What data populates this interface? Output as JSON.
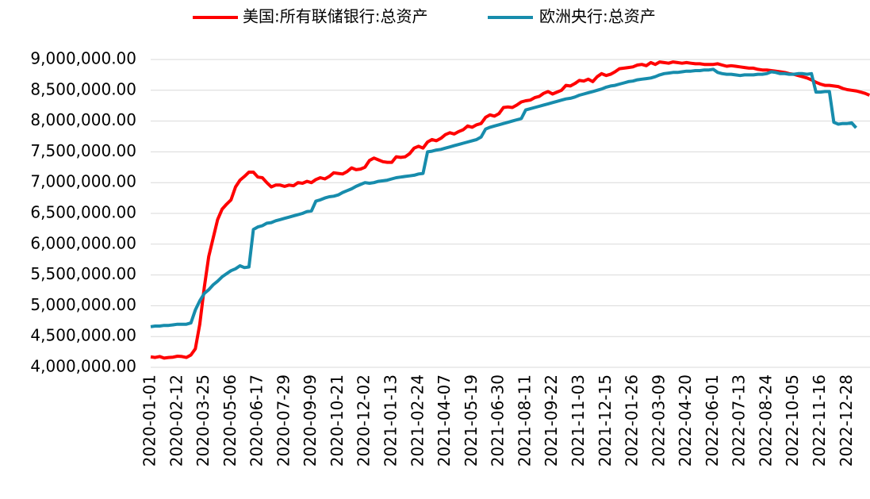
{
  "chart_data": {
    "type": "line",
    "categories": [
      "2020-01-01",
      null,
      null,
      null,
      null,
      null,
      "2020-02-12",
      null,
      null,
      null,
      null,
      null,
      "2020-03-25",
      null,
      null,
      null,
      null,
      null,
      "2020-05-06",
      null,
      null,
      null,
      null,
      null,
      "2020-06-17",
      null,
      null,
      null,
      null,
      null,
      "2020-07-29",
      null,
      null,
      null,
      null,
      null,
      "2020-09-09",
      null,
      null,
      null,
      null,
      null,
      "2020-10-21",
      null,
      null,
      null,
      null,
      null,
      "2020-12-02",
      null,
      null,
      null,
      null,
      null,
      "2021-01-13",
      null,
      null,
      null,
      null,
      null,
      "2021-02-24",
      null,
      null,
      null,
      null,
      null,
      "2021-04-07",
      null,
      null,
      null,
      null,
      null,
      "2021-05-19",
      null,
      null,
      null,
      null,
      null,
      "2021-06-30",
      null,
      null,
      null,
      null,
      null,
      "2021-08-11",
      null,
      null,
      null,
      null,
      null,
      "2021-09-22",
      null,
      null,
      null,
      null,
      null,
      "2021-11-03",
      null,
      null,
      null,
      null,
      null,
      "2021-12-15",
      null,
      null,
      null,
      null,
      null,
      "2022-01-26",
      null,
      null,
      null,
      null,
      null,
      "2022-03-09",
      null,
      null,
      null,
      null,
      null,
      "2022-04-20",
      null,
      null,
      null,
      null,
      null,
      "2022-06-01",
      null,
      null,
      null,
      null,
      null,
      "2022-07-13",
      null,
      null,
      null,
      null,
      null,
      "2022-08-24",
      null,
      null,
      null,
      null,
      null,
      "2022-10-05",
      null,
      null,
      null,
      null,
      null,
      "2022-11-16",
      null,
      null,
      null,
      null,
      null,
      "2022-12-28",
      null,
      null,
      null,
      null,
      null
    ],
    "series": [
      {
        "name": "美国:所有联储银行:总资产",
        "color": "#ff0000",
        "values": [
          4170000,
          4160000,
          4175000,
          4150000,
          4160000,
          4165000,
          4180000,
          4175000,
          4160000,
          4200000,
          4300000,
          4700000,
          5300000,
          5800000,
          6100000,
          6400000,
          6570000,
          6650000,
          6720000,
          6930000,
          7040000,
          7100000,
          7170000,
          7170000,
          7090000,
          7080000,
          7000000,
          6930000,
          6960000,
          6960000,
          6940000,
          6960000,
          6950000,
          7000000,
          6990000,
          7020000,
          7000000,
          7050000,
          7080000,
          7060000,
          7100000,
          7160000,
          7150000,
          7140000,
          7180000,
          7240000,
          7210000,
          7220000,
          7250000,
          7360000,
          7400000,
          7370000,
          7340000,
          7330000,
          7330000,
          7420000,
          7410000,
          7420000,
          7470000,
          7560000,
          7590000,
          7560000,
          7660000,
          7700000,
          7680000,
          7720000,
          7780000,
          7810000,
          7790000,
          7830000,
          7860000,
          7920000,
          7900000,
          7940000,
          7960000,
          8060000,
          8100000,
          8080000,
          8120000,
          8220000,
          8230000,
          8220000,
          8260000,
          8310000,
          8330000,
          8340000,
          8380000,
          8400000,
          8450000,
          8480000,
          8440000,
          8470000,
          8500000,
          8580000,
          8570000,
          8610000,
          8660000,
          8650000,
          8680000,
          8640000,
          8720000,
          8770000,
          8740000,
          8760000,
          8800000,
          8850000,
          8860000,
          8870000,
          8880000,
          8910000,
          8920000,
          8900000,
          8950000,
          8920000,
          8960000,
          8950000,
          8940000,
          8960000,
          8950000,
          8940000,
          8950000,
          8940000,
          8930000,
          8930000,
          8920000,
          8920000,
          8920000,
          8930000,
          8910000,
          8890000,
          8900000,
          8890000,
          8880000,
          8870000,
          8860000,
          8860000,
          8840000,
          8830000,
          8830000,
          8820000,
          8810000,
          8800000,
          8790000,
          8770000,
          8760000,
          8740000,
          8720000,
          8700000,
          8670000,
          8630000,
          8600000,
          8580000,
          8580000,
          8570000,
          8560000,
          8530000,
          8510000,
          8500000,
          8490000,
          8470000,
          8450000,
          8420000
        ]
      },
      {
        "name": "欧洲央行:总资产",
        "color": "#178cac",
        "values": [
          4660000,
          4670000,
          4670000,
          4680000,
          4680000,
          4690000,
          4700000,
          4700000,
          4700000,
          4720000,
          4930000,
          5080000,
          5200000,
          5260000,
          5340000,
          5400000,
          5470000,
          5520000,
          5570000,
          5600000,
          5650000,
          5620000,
          5630000,
          6240000,
          6280000,
          6300000,
          6340000,
          6350000,
          6380000,
          6400000,
          6420000,
          6440000,
          6460000,
          6480000,
          6500000,
          6530000,
          6540000,
          6700000,
          6720000,
          6750000,
          6770000,
          6780000,
          6800000,
          6840000,
          6870000,
          6900000,
          6940000,
          6970000,
          7000000,
          6990000,
          7000000,
          7020000,
          7030000,
          7040000,
          7060000,
          7080000,
          7090000,
          7100000,
          7110000,
          7120000,
          7140000,
          7150000,
          7500000,
          7510000,
          7530000,
          7540000,
          7560000,
          7580000,
          7600000,
          7620000,
          7640000,
          7660000,
          7680000,
          7700000,
          7740000,
          7870000,
          7900000,
          7920000,
          7940000,
          7960000,
          7980000,
          8000000,
          8020000,
          8040000,
          8180000,
          8200000,
          8220000,
          8240000,
          8260000,
          8280000,
          8300000,
          8320000,
          8340000,
          8360000,
          8370000,
          8390000,
          8420000,
          8440000,
          8460000,
          8480000,
          8500000,
          8520000,
          8550000,
          8570000,
          8580000,
          8600000,
          8620000,
          8640000,
          8650000,
          8670000,
          8680000,
          8690000,
          8700000,
          8720000,
          8750000,
          8770000,
          8780000,
          8790000,
          8790000,
          8800000,
          8810000,
          8810000,
          8820000,
          8820000,
          8830000,
          8830000,
          8840000,
          8790000,
          8770000,
          8760000,
          8760000,
          8750000,
          8740000,
          8750000,
          8750000,
          8750000,
          8760000,
          8760000,
          8770000,
          8800000,
          8790000,
          8770000,
          8770000,
          8760000,
          8760000,
          8770000,
          8770000,
          8760000,
          8770000,
          8470000,
          8470000,
          8480000,
          8480000,
          7980000,
          7950000,
          7960000,
          7960000,
          7970000,
          7890000,
          null,
          null,
          null
        ]
      }
    ],
    "ylim": [
      4000000,
      9000000
    ],
    "yticks": [
      {
        "value": 4000000,
        "label": "4,000,000.00"
      },
      {
        "value": 4500000,
        "label": "4,500,000.00"
      },
      {
        "value": 5000000,
        "label": "5,000,000.00"
      },
      {
        "value": 5500000,
        "label": "5,500,000.00"
      },
      {
        "value": 6000000,
        "label": "6,000,000.00"
      },
      {
        "value": 6500000,
        "label": "6,500,000.00"
      },
      {
        "value": 7000000,
        "label": "7,000,000.00"
      },
      {
        "value": 7500000,
        "label": "7,500,000.00"
      },
      {
        "value": 8000000,
        "label": "8,000,000.00"
      },
      {
        "value": 8500000,
        "label": "8,500,000.00"
      },
      {
        "value": 9000000,
        "label": "9,000,000.00"
      }
    ],
    "grid": true,
    "legend": "top"
  }
}
